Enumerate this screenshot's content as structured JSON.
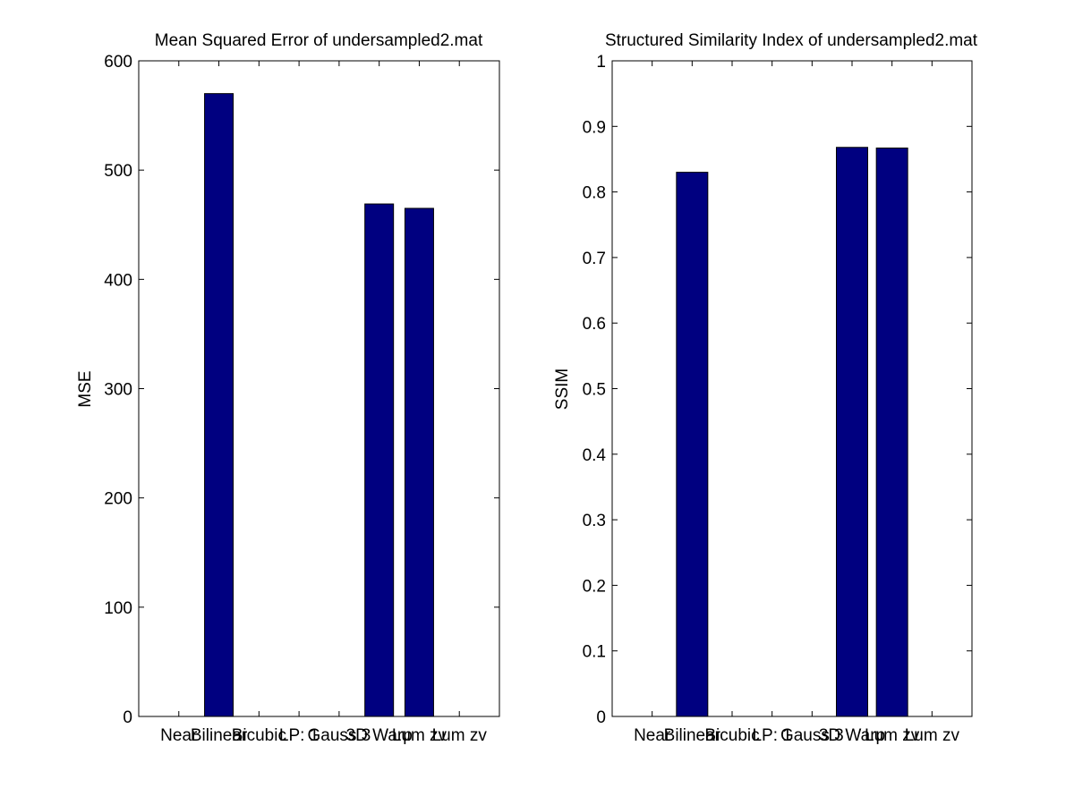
{
  "figure": {
    "background": "#ffffff"
  },
  "chart_data": [
    {
      "type": "bar",
      "title": "Mean Squared Error of undersampled2.mat",
      "xlabel": "",
      "ylabel": "MSE",
      "categories": [
        "Near",
        "Bilinear",
        "Bicubic",
        "LP: 1",
        "Gauss 3",
        "3D Warp",
        "Lum zv",
        "Lum zv"
      ],
      "values": [
        0,
        570,
        0,
        0,
        0,
        469,
        465,
        0
      ],
      "ylim": [
        0,
        600
      ],
      "yticks": [
        0,
        100,
        200,
        300,
        400,
        500,
        600
      ],
      "xlim": [
        0,
        9
      ],
      "bar_color": "#000080",
      "grid": false
    },
    {
      "type": "bar",
      "title": "Structured Similarity Index of undersampled2.mat",
      "xlabel": "",
      "ylabel": "SSIM",
      "categories": [
        "Near",
        "Bilinear",
        "Bicubic",
        "LP: 1",
        "Gauss 3",
        "3D Warp",
        "Lum zv",
        "Lum zv"
      ],
      "values": [
        0,
        0.83,
        0,
        0,
        0,
        0.868,
        0.867,
        0
      ],
      "ylim": [
        0,
        1
      ],
      "yticks": [
        0,
        0.1,
        0.2,
        0.3,
        0.4,
        0.5,
        0.6,
        0.7,
        0.8,
        0.9,
        1
      ],
      "xlim": [
        0,
        9
      ],
      "bar_color": "#000080",
      "grid": false
    }
  ]
}
